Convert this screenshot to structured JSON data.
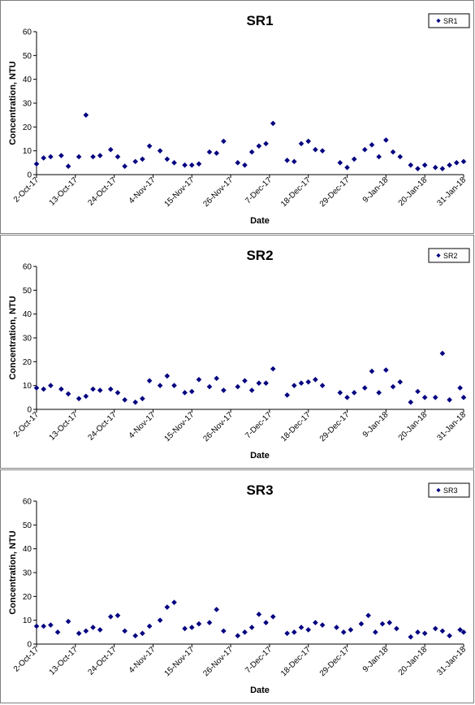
{
  "chart_data": [
    {
      "type": "scatter",
      "title": "SR1",
      "xlabel": "Date",
      "ylabel": "Concentration, NTU",
      "ylim": [
        0,
        60
      ],
      "yticks": [
        "0",
        "10",
        "20",
        "30",
        "40",
        "50",
        "60"
      ],
      "xlim": [
        "2-Oct-17",
        "31-Jan-18"
      ],
      "xtick_labels": [
        "2-Oct-17",
        "13-Oct-17",
        "24-Oct-17",
        "4-Nov-17",
        "15-Nov-17",
        "26-Nov-17",
        "7-Dec-17",
        "18-Dec-17",
        "29-Dec-17",
        "9-Jan-18",
        "20-Jan-18",
        "31-Jan-18"
      ],
      "grid": false,
      "legend": "top-right",
      "marker_color": "#000080",
      "series": [
        {
          "name": "SR1",
          "points": [
            [
              "2-Oct-17",
              4.5
            ],
            [
              "4-Oct-17",
              7.0
            ],
            [
              "6-Oct-17",
              7.5
            ],
            [
              "9-Oct-17",
              8.0
            ],
            [
              "11-Oct-17",
              3.5
            ],
            [
              "14-Oct-17",
              7.5
            ],
            [
              "16-Oct-17",
              25.0
            ],
            [
              "18-Oct-17",
              7.5
            ],
            [
              "20-Oct-17",
              8.0
            ],
            [
              "23-Oct-17",
              10.5
            ],
            [
              "25-Oct-17",
              7.5
            ],
            [
              "27-Oct-17",
              3.5
            ],
            [
              "30-Oct-17",
              5.5
            ],
            [
              "1-Nov-17",
              6.5
            ],
            [
              "3-Nov-17",
              12.0
            ],
            [
              "6-Nov-17",
              10.0
            ],
            [
              "8-Nov-17",
              6.5
            ],
            [
              "10-Nov-17",
              5.0
            ],
            [
              "13-Nov-17",
              4.0
            ],
            [
              "15-Nov-17",
              4.0
            ],
            [
              "17-Nov-17",
              4.5
            ],
            [
              "20-Nov-17",
              9.5
            ],
            [
              "22-Nov-17",
              9.0
            ],
            [
              "24-Nov-17",
              14.0
            ],
            [
              "28-Nov-17",
              5.0
            ],
            [
              "30-Nov-17",
              4.0
            ],
            [
              "2-Dec-17",
              9.5
            ],
            [
              "4-Dec-17",
              12.0
            ],
            [
              "6-Dec-17",
              13.0
            ],
            [
              "8-Dec-17",
              21.5
            ],
            [
              "12-Dec-17",
              6.0
            ],
            [
              "14-Dec-17",
              5.5
            ],
            [
              "16-Dec-17",
              13.0
            ],
            [
              "18-Dec-17",
              14.0
            ],
            [
              "20-Dec-17",
              10.5
            ],
            [
              "22-Dec-17",
              10.0
            ],
            [
              "27-Dec-17",
              5.0
            ],
            [
              "29-Dec-17",
              3.0
            ],
            [
              "31-Dec-17",
              6.5
            ],
            [
              "3-Jan-18",
              10.5
            ],
            [
              "5-Jan-18",
              12.5
            ],
            [
              "7-Jan-18",
              7.5
            ],
            [
              "9-Jan-18",
              14.5
            ],
            [
              "11-Jan-18",
              9.5
            ],
            [
              "13-Jan-18",
              7.5
            ],
            [
              "16-Jan-18",
              4.0
            ],
            [
              "18-Jan-18",
              2.5
            ],
            [
              "20-Jan-18",
              4.0
            ],
            [
              "23-Jan-18",
              3.0
            ],
            [
              "25-Jan-18",
              2.5
            ],
            [
              "27-Jan-18",
              4.0
            ],
            [
              "29-Jan-18",
              5.0
            ],
            [
              "31-Jan-18",
              5.5
            ]
          ]
        }
      ]
    },
    {
      "type": "scatter",
      "title": "SR2",
      "xlabel": "Date",
      "ylabel": "Concentration, NTU",
      "ylim": [
        0,
        60
      ],
      "yticks": [
        "0",
        "10",
        "20",
        "30",
        "40",
        "50",
        "60"
      ],
      "xlim": [
        "2-Oct-17",
        "31-Jan-18"
      ],
      "xtick_labels": [
        "2-Oct-17",
        "13-Oct-17",
        "24-Oct-17",
        "4-Nov-17",
        "15-Nov-17",
        "26-Nov-17",
        "7-Dec-17",
        "18-Dec-17",
        "29-Dec-17",
        "9-Jan-18",
        "20-Jan-18",
        "31-Jan-18"
      ],
      "grid": false,
      "legend": "top-right",
      "marker_color": "#000080",
      "series": [
        {
          "name": "SR2",
          "points": [
            [
              "2-Oct-17",
              9.0
            ],
            [
              "4-Oct-17",
              8.5
            ],
            [
              "6-Oct-17",
              10.0
            ],
            [
              "9-Oct-17",
              8.5
            ],
            [
              "11-Oct-17",
              6.5
            ],
            [
              "14-Oct-17",
              4.5
            ],
            [
              "16-Oct-17",
              5.5
            ],
            [
              "18-Oct-17",
              8.5
            ],
            [
              "20-Oct-17",
              8.0
            ],
            [
              "23-Oct-17",
              8.5
            ],
            [
              "25-Oct-17",
              7.0
            ],
            [
              "27-Oct-17",
              4.0
            ],
            [
              "30-Oct-17",
              3.0
            ],
            [
              "1-Nov-17",
              4.5
            ],
            [
              "3-Nov-17",
              12.0
            ],
            [
              "6-Nov-17",
              10.0
            ],
            [
              "8-Nov-17",
              14.0
            ],
            [
              "10-Nov-17",
              10.0
            ],
            [
              "13-Nov-17",
              7.0
            ],
            [
              "15-Nov-17",
              7.5
            ],
            [
              "17-Nov-17",
              12.5
            ],
            [
              "20-Nov-17",
              9.5
            ],
            [
              "22-Nov-17",
              13.0
            ],
            [
              "24-Nov-17",
              8.0
            ],
            [
              "28-Nov-17",
              9.5
            ],
            [
              "30-Nov-17",
              12.0
            ],
            [
              "2-Dec-17",
              8.0
            ],
            [
              "4-Dec-17",
              11.0
            ],
            [
              "6-Dec-17",
              11.0
            ],
            [
              "8-Dec-17",
              17.0
            ],
            [
              "12-Dec-17",
              6.0
            ],
            [
              "14-Dec-17",
              10.0
            ],
            [
              "16-Dec-17",
              11.0
            ],
            [
              "18-Dec-17",
              11.5
            ],
            [
              "20-Dec-17",
              12.5
            ],
            [
              "22-Dec-17",
              10.0
            ],
            [
              "27-Dec-17",
              7.0
            ],
            [
              "29-Dec-17",
              5.0
            ],
            [
              "31-Dec-17",
              7.0
            ],
            [
              "3-Jan-18",
              9.0
            ],
            [
              "5-Jan-18",
              16.0
            ],
            [
              "7-Jan-18",
              7.0
            ],
            [
              "9-Jan-18",
              16.5
            ],
            [
              "11-Jan-18",
              9.5
            ],
            [
              "13-Jan-18",
              11.5
            ],
            [
              "16-Jan-18",
              3.0
            ],
            [
              "18-Jan-18",
              7.5
            ],
            [
              "20-Jan-18",
              5.0
            ],
            [
              "23-Jan-18",
              5.0
            ],
            [
              "25-Jan-18",
              23.5
            ],
            [
              "27-Jan-18",
              4.0
            ],
            [
              "30-Jan-18",
              9.0
            ],
            [
              "31-Jan-18",
              5.0
            ]
          ]
        }
      ]
    },
    {
      "type": "scatter",
      "title": "SR3",
      "xlabel": "Date",
      "ylabel": "Concentration, NTU",
      "ylim": [
        0,
        60
      ],
      "yticks": [
        "0",
        "10",
        "20",
        "30",
        "40",
        "50",
        "60"
      ],
      "xlim": [
        "2-Oct-17",
        "31-Jan-18"
      ],
      "xtick_labels": [
        "2-Oct-17",
        "13-Oct-17",
        "24-Oct-17",
        "4-Nov-17",
        "15-Nov-17",
        "26-Nov-17",
        "7-Dec-17",
        "18-Dec-17",
        "29-Dec-17",
        "9-Jan-18",
        "20-Jan-18",
        "31-Jan-18"
      ],
      "grid": false,
      "legend": "top-right",
      "marker_color": "#000080",
      "series": [
        {
          "name": "SR3",
          "points": [
            [
              "2-Oct-17",
              7.5
            ],
            [
              "4-Oct-17",
              7.5
            ],
            [
              "6-Oct-17",
              8.0
            ],
            [
              "8-Oct-17",
              5.0
            ],
            [
              "11-Oct-17",
              9.5
            ],
            [
              "14-Oct-17",
              4.5
            ],
            [
              "16-Oct-17",
              5.5
            ],
            [
              "18-Oct-17",
              7.0
            ],
            [
              "20-Oct-17",
              6.0
            ],
            [
              "23-Oct-17",
              11.5
            ],
            [
              "25-Oct-17",
              12.0
            ],
            [
              "27-Oct-17",
              5.5
            ],
            [
              "30-Oct-17",
              3.5
            ],
            [
              "1-Nov-17",
              4.5
            ],
            [
              "3-Nov-17",
              7.5
            ],
            [
              "6-Nov-17",
              10.0
            ],
            [
              "8-Nov-17",
              15.5
            ],
            [
              "10-Nov-17",
              17.5
            ],
            [
              "13-Nov-17",
              6.5
            ],
            [
              "15-Nov-17",
              7.0
            ],
            [
              "17-Nov-17",
              8.5
            ],
            [
              "20-Nov-17",
              9.0
            ],
            [
              "22-Nov-17",
              14.5
            ],
            [
              "24-Nov-17",
              5.5
            ],
            [
              "28-Nov-17",
              3.5
            ],
            [
              "30-Nov-17",
              5.0
            ],
            [
              "2-Dec-17",
              7.0
            ],
            [
              "4-Dec-17",
              12.5
            ],
            [
              "6-Dec-17",
              9.0
            ],
            [
              "8-Dec-17",
              11.5
            ],
            [
              "12-Dec-17",
              4.5
            ],
            [
              "14-Dec-17",
              5.0
            ],
            [
              "16-Dec-17",
              7.0
            ],
            [
              "18-Dec-17",
              6.0
            ],
            [
              "20-Dec-17",
              9.0
            ],
            [
              "22-Dec-17",
              8.0
            ],
            [
              "26-Dec-17",
              7.0
            ],
            [
              "28-Dec-17",
              5.0
            ],
            [
              "30-Dec-17",
              6.0
            ],
            [
              "2-Jan-18",
              8.5
            ],
            [
              "4-Jan-18",
              12.0
            ],
            [
              "6-Jan-18",
              5.0
            ],
            [
              "8-Jan-18",
              8.5
            ],
            [
              "10-Jan-18",
              9.0
            ],
            [
              "12-Jan-18",
              6.5
            ],
            [
              "16-Jan-18",
              3.0
            ],
            [
              "18-Jan-18",
              5.0
            ],
            [
              "20-Jan-18",
              4.5
            ],
            [
              "23-Jan-18",
              6.5
            ],
            [
              "25-Jan-18",
              5.5
            ],
            [
              "27-Jan-18",
              3.5
            ],
            [
              "30-Jan-18",
              6.0
            ],
            [
              "31-Jan-18",
              5.0
            ]
          ]
        }
      ]
    }
  ]
}
